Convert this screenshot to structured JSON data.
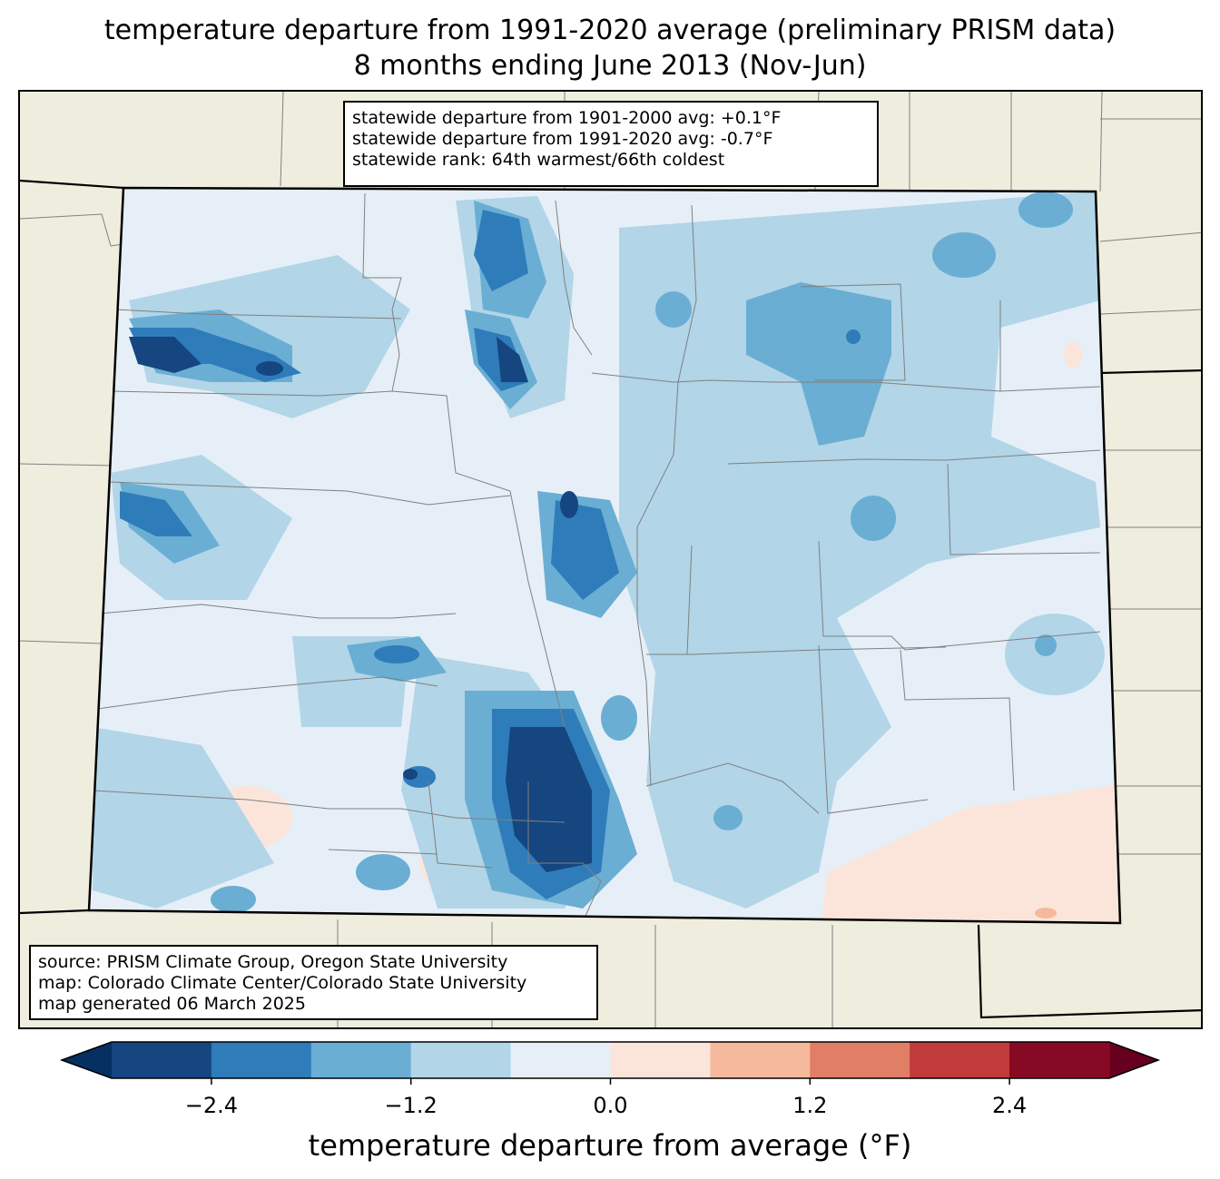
{
  "title": {
    "line1": "temperature departure from 1991-2020 average (preliminary PRISM data)",
    "line2": "8 months ending June 2013 (Nov-Jun)"
  },
  "stats": {
    "line1": "statewide departure from 1901-2000 avg: +0.1°F",
    "line2": "statewide departure from 1991-2020 avg: -0.7°F",
    "line3": "statewide rank: 64th warmest/66th coldest"
  },
  "credits": {
    "line1": "source: PRISM Climate Group, Oregon State University",
    "line2": "map: Colorado Climate Center/Colorado State University",
    "line3": "map generated 06 March 2025"
  },
  "colorbar": {
    "label": "temperature departure from average (°F)",
    "ticks": [
      "−2.4",
      "−1.2",
      "0.0",
      "1.2",
      "2.4"
    ],
    "tick_values": [
      -2.4,
      -1.2,
      0.0,
      1.2,
      2.4
    ],
    "bin_edges": [
      -3.0,
      -2.4,
      -1.8,
      -1.2,
      -0.6,
      0.0,
      0.6,
      1.2,
      1.8,
      2.4,
      3.0
    ],
    "colors": [
      "#15467f",
      "#2f7cba",
      "#6aaed4",
      "#b2d5e8",
      "#e6eff7",
      "#fbe5da",
      "#f7b99d",
      "#e17e66",
      "#c13a3c",
      "#870a24"
    ],
    "under_color": "#053061",
    "over_color": "#67001f"
  },
  "map": {
    "land_color": "#efedde",
    "state_outline_color": "#000000",
    "county_line_color": "#808080"
  }
}
